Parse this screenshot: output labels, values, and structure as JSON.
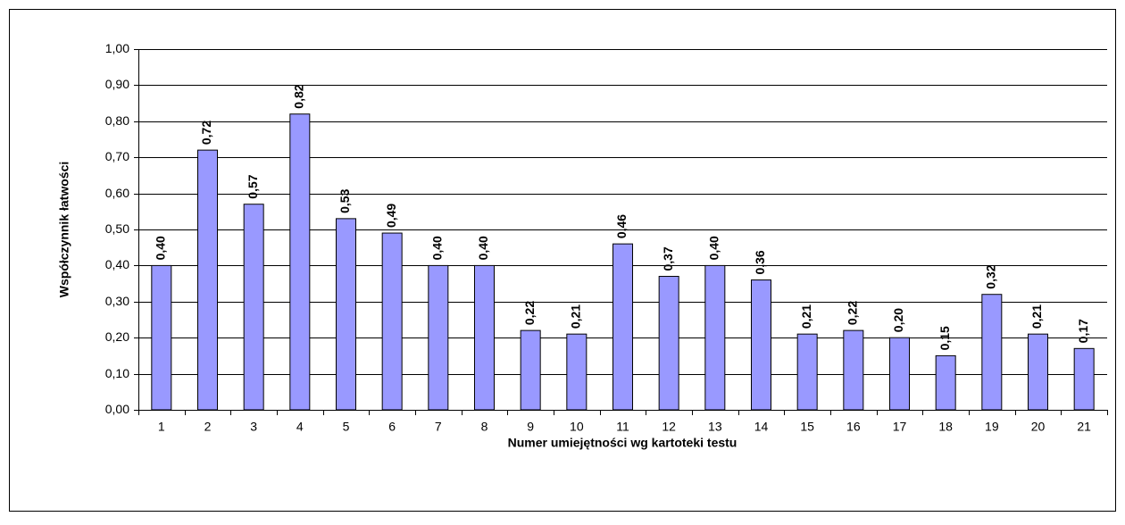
{
  "chart_data": {
    "type": "bar",
    "y_label": "Współczynnik łatwości",
    "x_label": "Numer umiejętności wg kartoteki testu",
    "categories": [
      "1",
      "2",
      "3",
      "4",
      "5",
      "6",
      "7",
      "8",
      "9",
      "10",
      "11",
      "12",
      "13",
      "14",
      "15",
      "16",
      "17",
      "18",
      "19",
      "20",
      "21"
    ],
    "values": [
      0.4,
      0.72,
      0.57,
      0.82,
      0.53,
      0.49,
      0.4,
      0.4,
      0.22,
      0.21,
      0.46,
      0.37,
      0.4,
      0.36,
      0.21,
      0.22,
      0.2,
      0.15,
      0.32,
      0.21,
      0.17
    ],
    "value_labels": [
      "0,40",
      "0,72",
      "0,57",
      "0,82",
      "0,53",
      "0,49",
      "0,40",
      "0,40",
      "0,22",
      "0,21",
      "0,46",
      "0,37",
      "0,40",
      "0,36",
      "0,21",
      "0,22",
      "0,20",
      "0,15",
      "0,32",
      "0,21",
      "0,17"
    ],
    "color": "#9999ff",
    "ylim": [
      0,
      1
    ],
    "yticks": [
      {
        "value": 0,
        "label": "0,00"
      },
      {
        "value": 0.1,
        "label": "0,10"
      },
      {
        "value": 0.2,
        "label": "0,20"
      },
      {
        "value": 0.3,
        "label": "0,30"
      },
      {
        "value": 0.4,
        "label": "0,40"
      },
      {
        "value": 0.5,
        "label": "0,50"
      },
      {
        "value": 0.6,
        "label": "0,60"
      },
      {
        "value": 0.7,
        "label": "0,70"
      },
      {
        "value": 0.8,
        "label": "0,80"
      },
      {
        "value": 0.9,
        "label": "0,90"
      },
      {
        "value": 1,
        "label": "1,00"
      }
    ],
    "grid": true
  }
}
